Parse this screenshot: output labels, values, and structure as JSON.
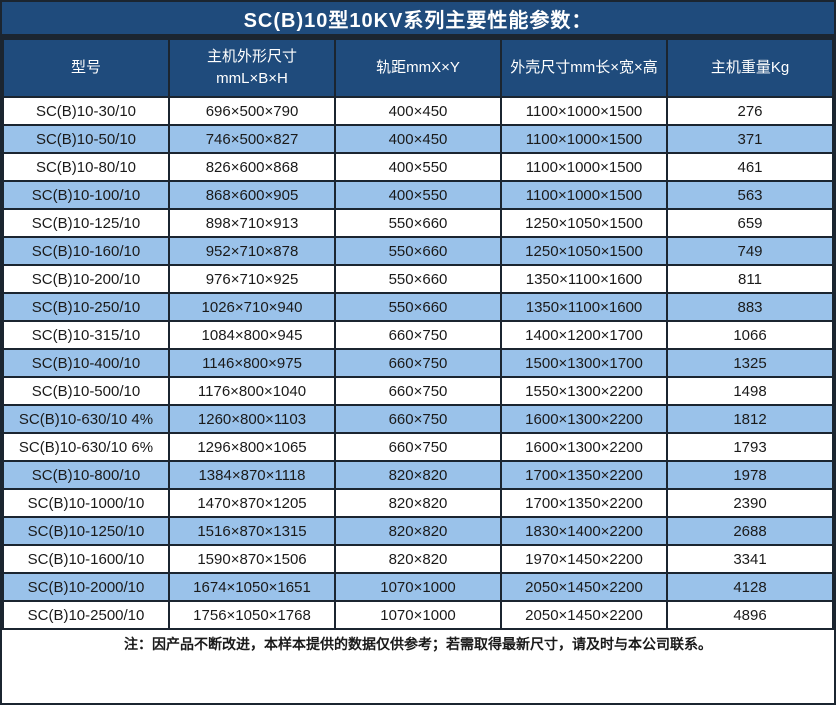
{
  "title": "SC(B)10型10KV系列主要性能参数：",
  "colors": {
    "header_bg": "#1F4B7C",
    "row_alt_bg": "#9AC2EA",
    "border": "#1B2530",
    "body_text": "#1A1A1A",
    "header_text": "#FFFFFF"
  },
  "table": {
    "columns": [
      {
        "label": "型号",
        "label2": ""
      },
      {
        "label": "主机外形尺寸",
        "label2": "mmL×B×H"
      },
      {
        "label": "轨距mmX×Y",
        "label2": ""
      },
      {
        "label": "外壳尺寸mm长×宽×高",
        "label2": ""
      },
      {
        "label": "主机重量Kg",
        "label2": ""
      }
    ],
    "rows": [
      [
        "SC(B)10-30/10",
        "696×500×790",
        "400×450",
        "1100×1000×1500",
        "276"
      ],
      [
        "SC(B)10-50/10",
        "746×500×827",
        "400×450",
        "1100×1000×1500",
        "371"
      ],
      [
        "SC(B)10-80/10",
        "826×600×868",
        "400×550",
        "1100×1000×1500",
        "461"
      ],
      [
        "SC(B)10-100/10",
        "868×600×905",
        "400×550",
        "1100×1000×1500",
        "563"
      ],
      [
        "SC(B)10-125/10",
        "898×710×913",
        "550×660",
        "1250×1050×1500",
        "659"
      ],
      [
        "SC(B)10-160/10",
        "952×710×878",
        "550×660",
        "1250×1050×1500",
        "749"
      ],
      [
        "SC(B)10-200/10",
        "976×710×925",
        "550×660",
        "1350×1100×1600",
        "811"
      ],
      [
        "SC(B)10-250/10",
        "1026×710×940",
        "550×660",
        "1350×1100×1600",
        "883"
      ],
      [
        "SC(B)10-315/10",
        "1084×800×945",
        "660×750",
        "1400×1200×1700",
        "1066"
      ],
      [
        "SC(B)10-400/10",
        "1146×800×975",
        "660×750",
        "1500×1300×1700",
        "1325"
      ],
      [
        "SC(B)10-500/10",
        "1176×800×1040",
        "660×750",
        "1550×1300×2200",
        "1498"
      ],
      [
        "SC(B)10-630/10 4%",
        "1260×800×1103",
        "660×750",
        "1600×1300×2200",
        "1812"
      ],
      [
        "SC(B)10-630/10 6%",
        "1296×800×1065",
        "660×750",
        "1600×1300×2200",
        "1793"
      ],
      [
        "SC(B)10-800/10",
        "1384×870×1118",
        "820×820",
        "1700×1350×2200",
        "1978"
      ],
      [
        "SC(B)10-1000/10",
        "1470×870×1205",
        "820×820",
        "1700×1350×2200",
        "2390"
      ],
      [
        "SC(B)10-1250/10",
        "1516×870×1315",
        "820×820",
        "1830×1400×2200",
        "2688"
      ],
      [
        "SC(B)10-1600/10",
        "1590×870×1506",
        "820×820",
        "1970×1450×2200",
        "3341"
      ],
      [
        "SC(B)10-2000/10",
        "1674×1050×1651",
        "1070×1000",
        "2050×1450×2200",
        "4128"
      ],
      [
        "SC(B)10-2500/10",
        "1756×1050×1768",
        "1070×1000",
        "2050×1450×2200",
        "4896"
      ]
    ]
  },
  "footer": {
    "note": "注：因产品不断改进，本样本提供的数据仅供参考；若需取得最新尺寸，请及时与本公司联系。"
  }
}
